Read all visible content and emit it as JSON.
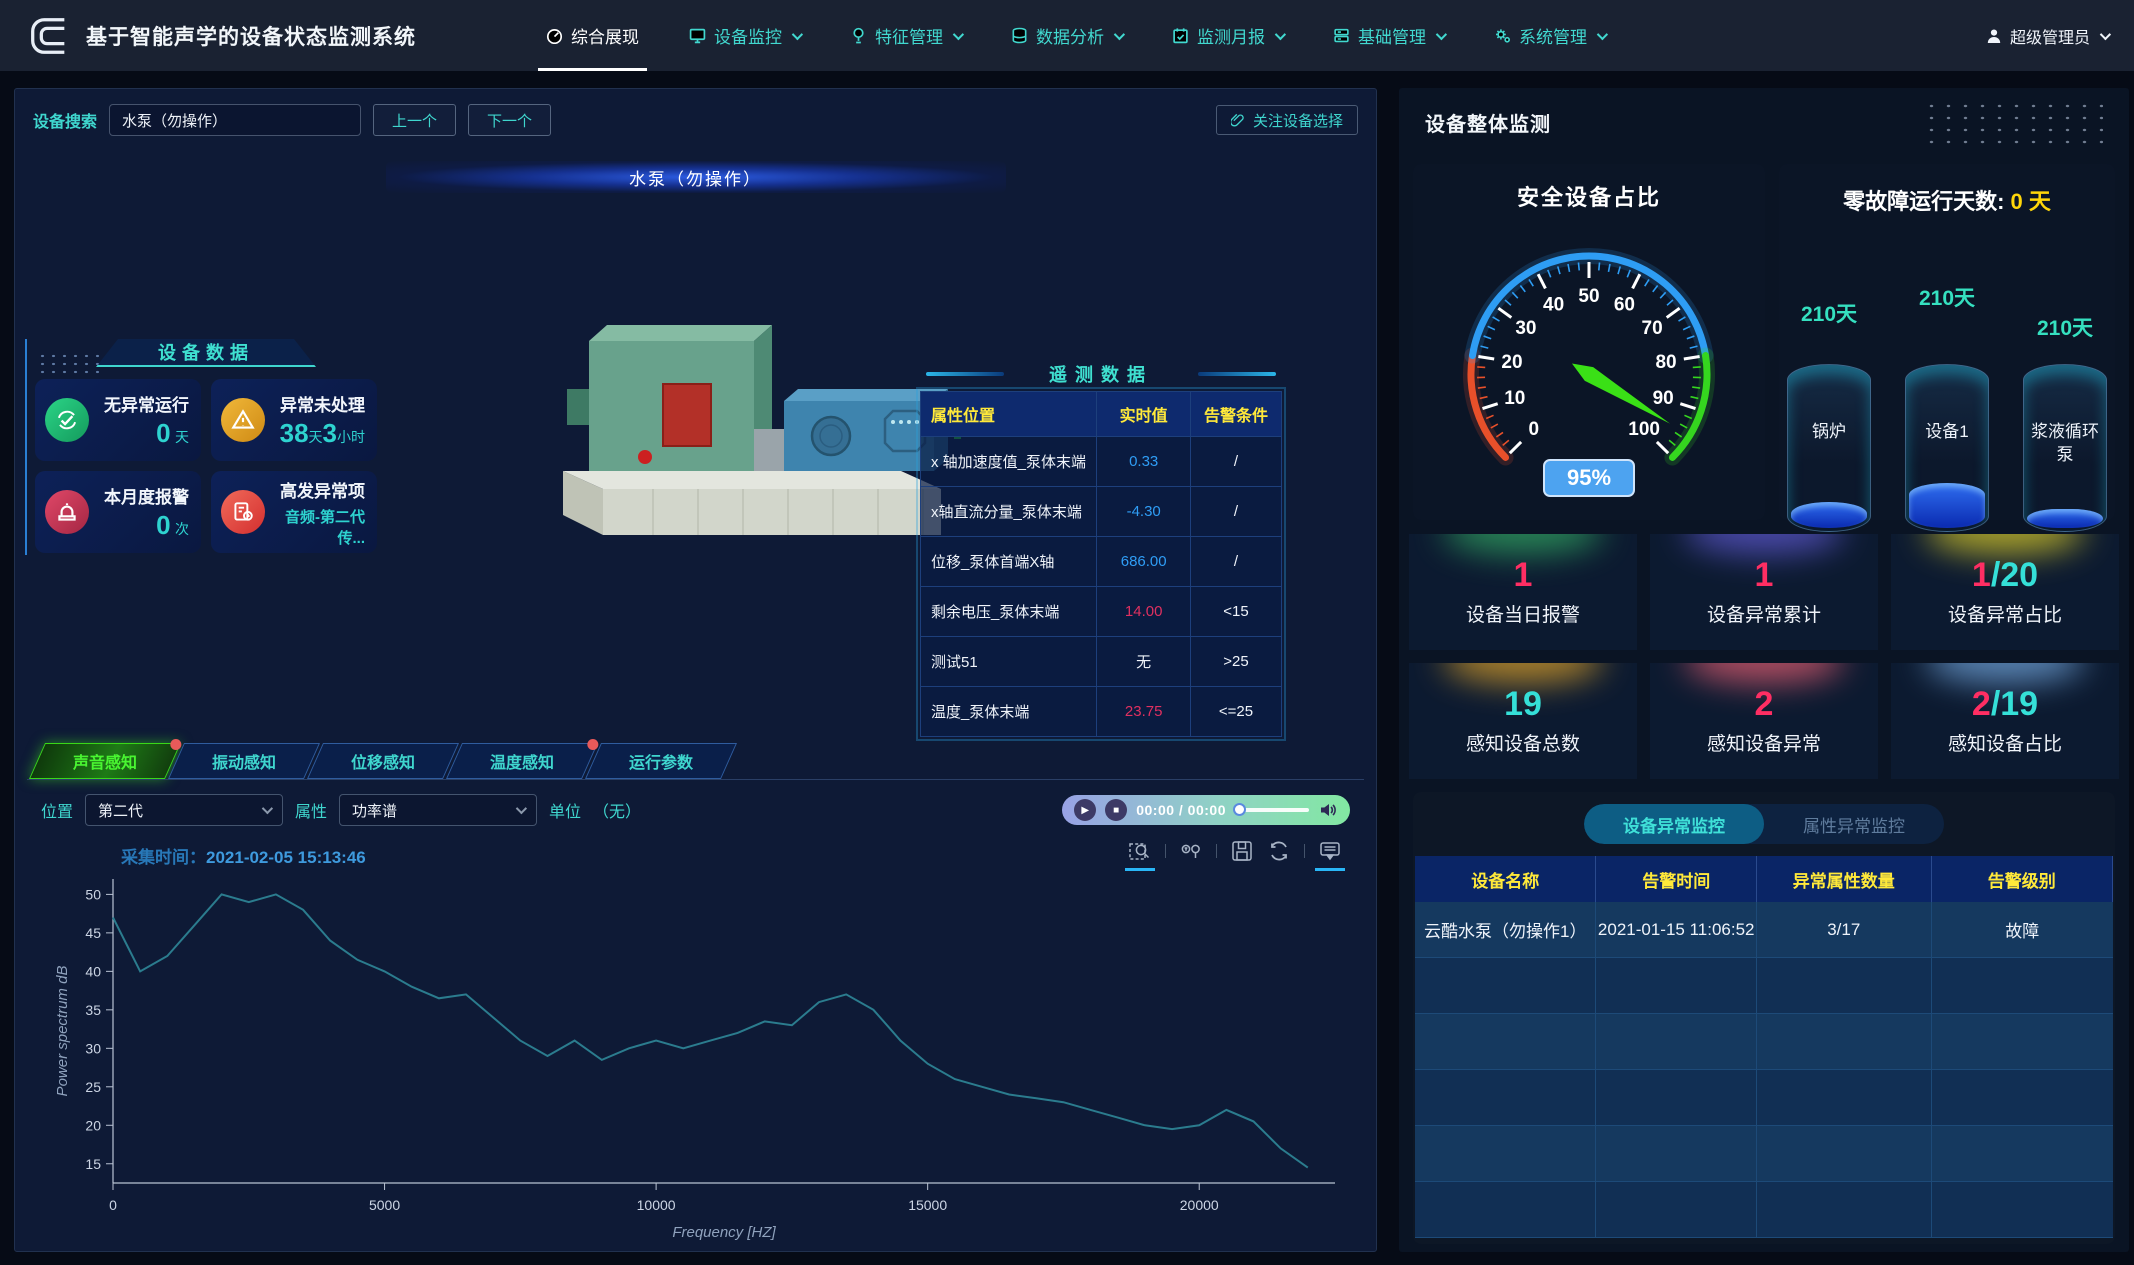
{
  "app": {
    "title": "基于智能声学的设备状态监测系统"
  },
  "nav": {
    "items": [
      {
        "label": "综合展现",
        "active": true
      },
      {
        "label": "设备监控",
        "dropdown": true
      },
      {
        "label": "特征管理",
        "dropdown": true
      },
      {
        "label": "数据分析",
        "dropdown": true
      },
      {
        "label": "监测月报",
        "dropdown": true
      },
      {
        "label": "基础管理",
        "dropdown": true
      },
      {
        "label": "系统管理",
        "dropdown": true
      }
    ],
    "user": "超级管理员"
  },
  "left": {
    "search": {
      "label": "设备搜索",
      "value": "水泵（勿操作）",
      "prev": "上一个",
      "next": "下一个",
      "focus": "关注设备选择"
    },
    "device_title": "水泵（勿操作）",
    "device_data": {
      "title": "设备数据",
      "cards": [
        {
          "label": "无异常运行",
          "v1": "0",
          "u1": "天",
          "v2": "",
          "u2": "",
          "sub": ""
        },
        {
          "label": "异常未处理",
          "v1": "38",
          "u1": "天",
          "v2": "3",
          "u2": "小时",
          "sub": ""
        },
        {
          "label": "本月度报警",
          "v1": "0",
          "u1": "次",
          "v2": "",
          "u2": "",
          "sub": ""
        },
        {
          "label": "高发异常项",
          "v1": "",
          "u1": "",
          "v2": "",
          "u2": "",
          "sub": "音频-第二代传..."
        }
      ]
    },
    "telemetry": {
      "title": "遥测数据",
      "headers": [
        "属性位置",
        "实时值",
        "告警条件"
      ],
      "rows": [
        {
          "name": "x 轴加速度值_泵体末端",
          "value": "0.33",
          "value_color": "blue",
          "cond": "/"
        },
        {
          "name": "x轴直流分量_泵体末端",
          "value": "-4.30",
          "value_color": "blue",
          "cond": "/"
        },
        {
          "name": "位移_泵体首端X轴",
          "value": "686.00",
          "value_color": "blue",
          "cond": "/"
        },
        {
          "name": "剩余电压_泵体末端",
          "value": "14.00",
          "value_color": "red",
          "cond": "<15"
        },
        {
          "name": "测试51",
          "value": "无",
          "value_color": "white",
          "cond": ">25"
        },
        {
          "name": "温度_泵体末端",
          "value": "23.75",
          "value_color": "red",
          "cond": "<=25"
        }
      ]
    },
    "tabs": [
      {
        "label": "声音感知",
        "active": true,
        "badge": true
      },
      {
        "label": "振动感知",
        "active": false,
        "badge": false
      },
      {
        "label": "位移感知",
        "active": false,
        "badge": false
      },
      {
        "label": "温度感知",
        "active": false,
        "badge": true
      },
      {
        "label": "运行参数",
        "active": false,
        "badge": false
      }
    ],
    "controls": {
      "position_label": "位置",
      "position_value": "第二代",
      "attr_label": "属性",
      "attr_value": "功率谱",
      "unit_label": "单位",
      "unit_value": "（无）"
    },
    "player": {
      "time": "00:00 / 00:00"
    },
    "capture": {
      "label": "采集时间：",
      "value": "2021-02-05 15:13:46"
    }
  },
  "right": {
    "title": "设备整体监测",
    "gauge_title": "安全设备占比",
    "zero_fault": {
      "label": "零故障运行天数:",
      "value": "0",
      "unit": "天",
      "cylinders": [
        {
          "days": "210天",
          "name": "锅炉"
        },
        {
          "days": "210天",
          "name": "设备1"
        },
        {
          "days": "210天",
          "name": "浆液循环泵"
        }
      ]
    },
    "stat_cards": [
      {
        "num": "1",
        "den": "",
        "label": "设备当日报警",
        "num_color": "pink",
        "glow": "#2f9e5f"
      },
      {
        "num": "1",
        "den": "",
        "label": "设备异常累计",
        "num_color": "pink",
        "glow": "#5a55c8"
      },
      {
        "num": "1",
        "den": "/20",
        "label": "设备异常占比",
        "num_color": "pink",
        "glow": "#cfc22a"
      },
      {
        "num": "19",
        "den": "",
        "label": "感知设备总数",
        "num_color": "cyan",
        "glow": "#d19a2a"
      },
      {
        "num": "2",
        "den": "",
        "label": "感知设备异常",
        "num_color": "pink",
        "glow": "#d85a6e"
      },
      {
        "num": "2",
        "den": "/19",
        "label": "感知设备占比",
        "num_color": "pink",
        "glow": "#6d9fd4"
      }
    ],
    "alarm": {
      "tabs": [
        {
          "label": "设备异常监控",
          "active": true
        },
        {
          "label": "属性异常监控",
          "active": false
        }
      ],
      "headers": [
        "设备名称",
        "告警时间",
        "异常属性数量",
        "告警级别"
      ],
      "rows": [
        {
          "name": "云酷水泵（勿操作1）",
          "time": "2021-01-15 11:06:52",
          "count": "3/17",
          "level": "故障"
        }
      ]
    }
  },
  "colors": {
    "accent_cyan": "#3fd6ce",
    "header_yellow": "#ffe93a",
    "value_blue": "#2f9df5",
    "alert_pink": "#e03060"
  },
  "chart_data": [
    {
      "type": "line",
      "title": "功率谱",
      "capture_time": "2021-02-05 15:13:46",
      "xlabel": "Frequency [HZ]",
      "ylabel": "Power spectrum dB",
      "xlim": [
        0,
        22500
      ],
      "ylim": [
        12.5,
        52
      ],
      "xticks": [
        0,
        5000,
        10000,
        15000,
        20000
      ],
      "yticks": [
        15,
        20,
        25,
        30,
        35,
        40,
        45,
        50
      ],
      "line_color": "#2b7c8e",
      "legend": [],
      "grid": false,
      "x": [
        0,
        500,
        1000,
        1500,
        2000,
        2500,
        3000,
        3500,
        4000,
        4500,
        5000,
        5500,
        6000,
        6500,
        7000,
        7500,
        8000,
        8500,
        9000,
        9500,
        10000,
        10500,
        11000,
        11500,
        12000,
        12500,
        13000,
        13500,
        14000,
        14500,
        15000,
        15500,
        16000,
        16500,
        17000,
        17500,
        18000,
        18500,
        19000,
        19500,
        20000,
        20500,
        21000,
        21500,
        22000
      ],
      "y": [
        47,
        40,
        42,
        46,
        50,
        49,
        50,
        48,
        44,
        41.5,
        40,
        38,
        36.5,
        37,
        34,
        31,
        29,
        31,
        28.5,
        30,
        31,
        30,
        31,
        32,
        33.5,
        33,
        36,
        37,
        35,
        31,
        28,
        26,
        25,
        24,
        23.5,
        23,
        22,
        21,
        20,
        19.5,
        20,
        22,
        20.5,
        17,
        14.5
      ]
    },
    {
      "type": "gauge",
      "title": "安全设备占比",
      "value": 95,
      "display": "95%",
      "min": 0,
      "max": 100,
      "tick_interval": 10,
      "segments": [
        {
          "from": 0,
          "to": 20,
          "color": "#e8502a"
        },
        {
          "from": 20,
          "to": 80,
          "color": "#2e9df4"
        },
        {
          "from": 80,
          "to": 100,
          "color": "#35d61f"
        }
      ],
      "needle_color": "#3ae016",
      "badge_color": "#4da3f0"
    },
    {
      "type": "cylinder",
      "title": "零故障运行天数",
      "categories": [
        "锅炉",
        "设备1",
        "浆液循环泵"
      ],
      "values": [
        "210天",
        "210天",
        "210天"
      ],
      "fill_levels": [
        0.16,
        0.28,
        0.12
      ]
    }
  ]
}
